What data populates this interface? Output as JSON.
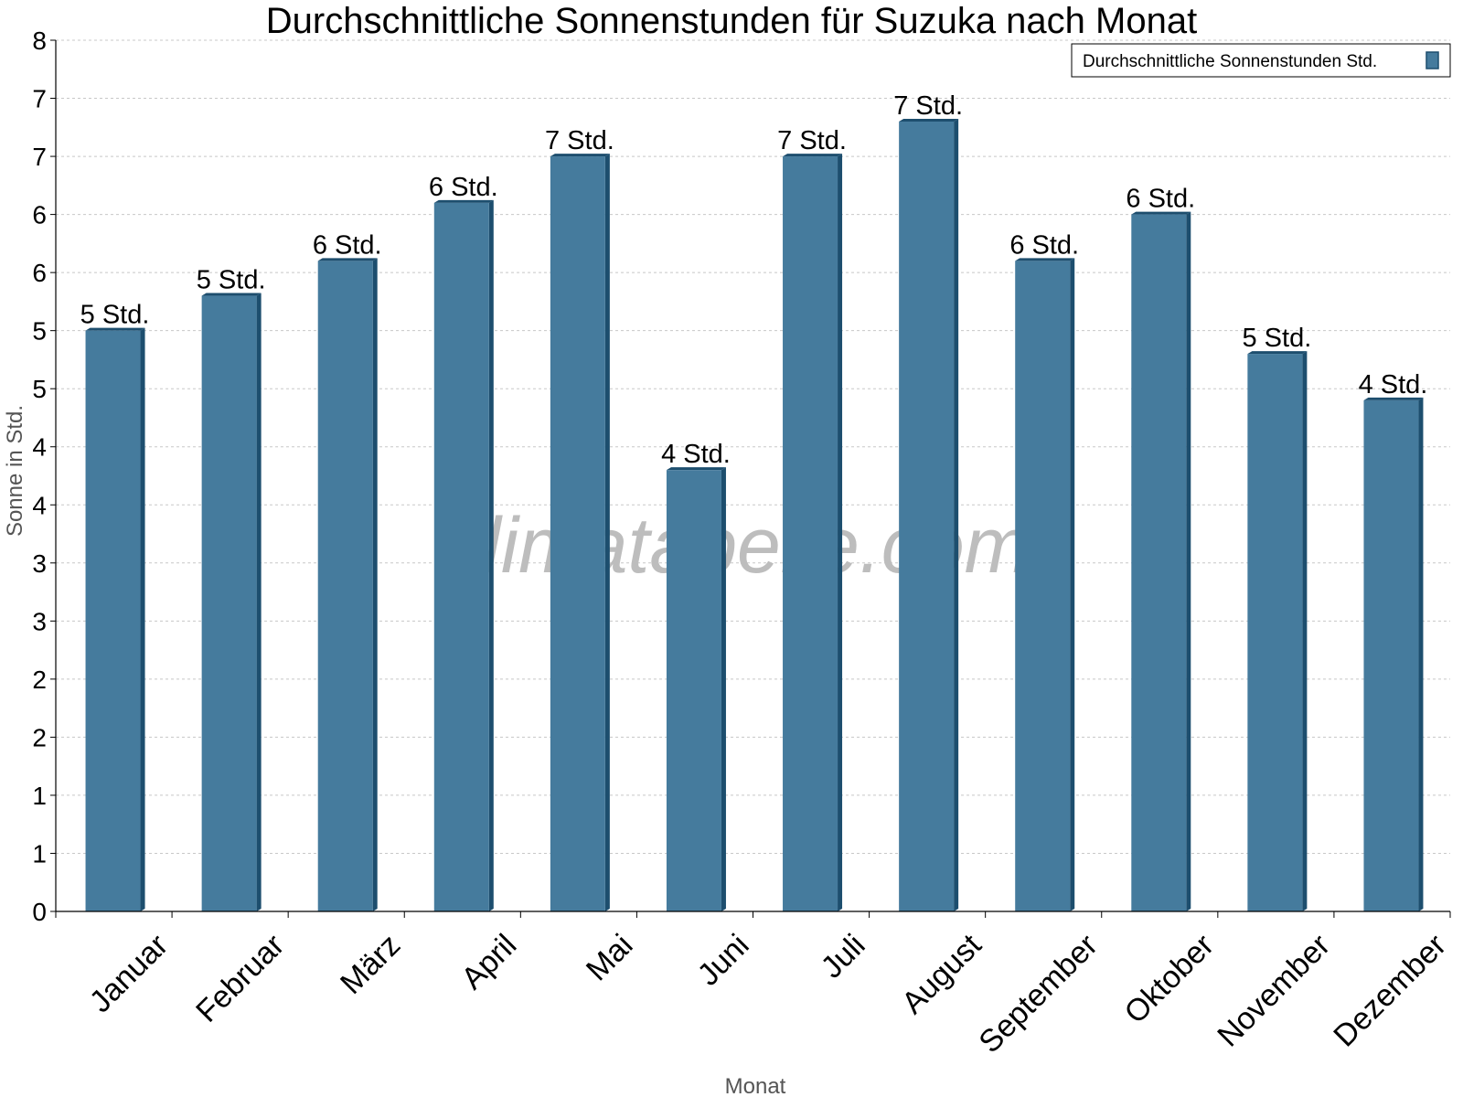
{
  "chart_data": {
    "type": "bar",
    "title": "Durchschnittliche Sonnenstunden für Suzuka nach Monat",
    "xlabel": "Monat",
    "ylabel": "Sonne in Std.",
    "ylim": [
      0,
      7.5
    ],
    "y_tick_values": [
      0,
      0.5,
      1,
      1.5,
      2,
      2.5,
      3,
      3.5,
      4,
      4.5,
      5,
      5.5,
      6,
      6.5,
      7,
      7.5
    ],
    "y_tick_labels": [
      "0",
      "1",
      "1",
      "2",
      "2",
      "3",
      "3",
      "4",
      "4",
      "5",
      "5",
      "6",
      "6",
      "7",
      "7",
      "8"
    ],
    "categories": [
      "Januar",
      "Februar",
      "März",
      "April",
      "Mai",
      "Juni",
      "Juli",
      "August",
      "September",
      "Oktober",
      "November",
      "Dezember"
    ],
    "series": [
      {
        "name": "Durchschnittliche Sonnenstunden Std.",
        "values": [
          5.0,
          5.3,
          5.6,
          6.1,
          6.5,
          3.8,
          6.5,
          6.8,
          5.6,
          6.0,
          4.8,
          4.4
        ],
        "data_labels": [
          "5 Std.",
          "5 Std.",
          "6 Std.",
          "6 Std.",
          "7 Std.",
          "4 Std.",
          "7 Std.",
          "7 Std.",
          "6 Std.",
          "6 Std.",
          "5 Std.",
          "4 Std."
        ],
        "color": "#457b9d",
        "side_color": "#1d4e6e"
      }
    ],
    "grid": true,
    "legend_position": "top-right"
  },
  "watermark": "klimatabelle.com",
  "colors": {
    "axis": "#000000",
    "grid": "#c8c8c8"
  }
}
